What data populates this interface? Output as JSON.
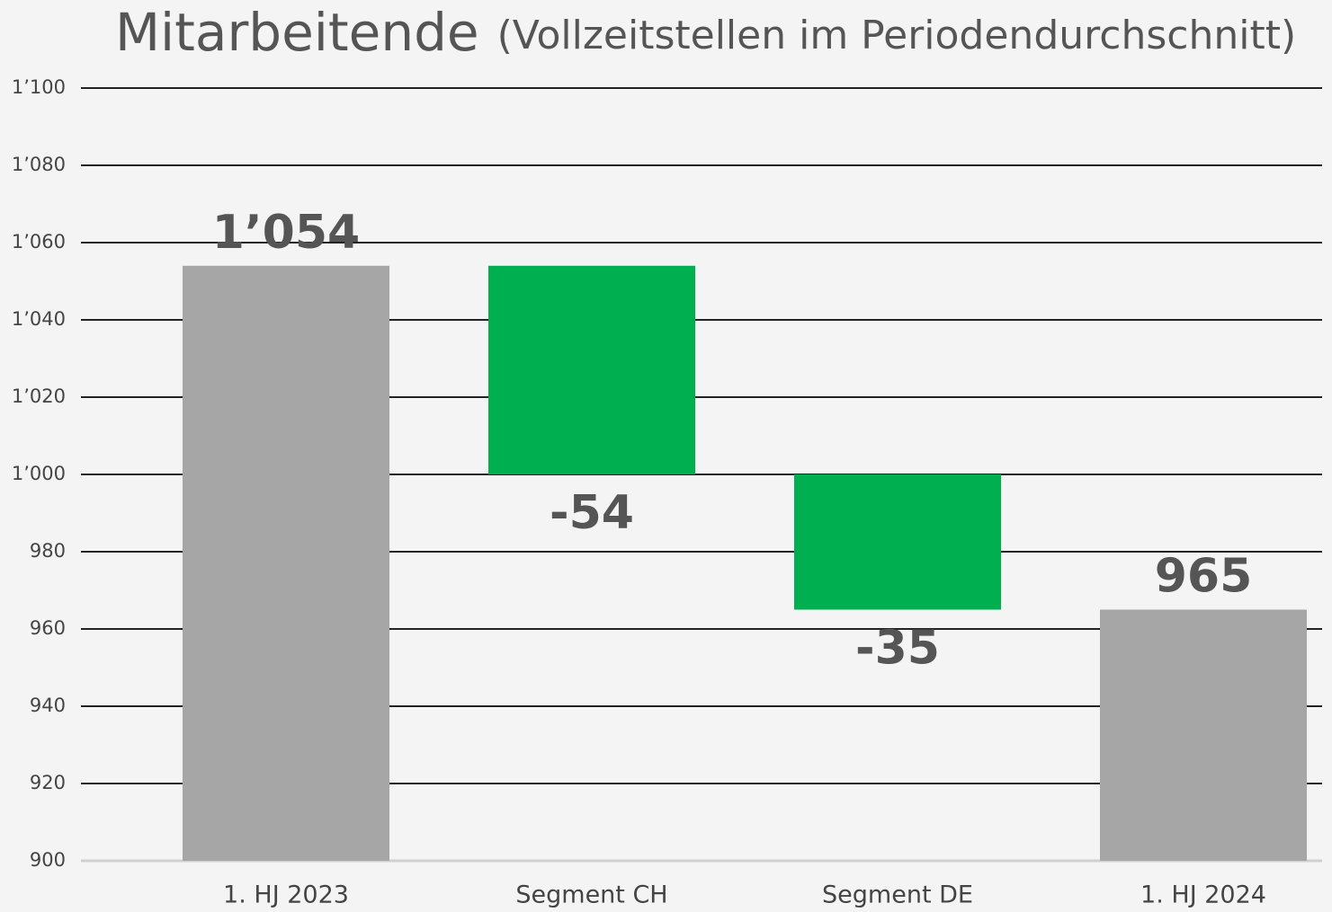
{
  "chart_data": {
    "type": "waterfall",
    "title": "Mitarbeitende",
    "subtitle": "(Vollzeitstellen im Periodendurchschnitt)",
    "categories": [
      "1. HJ 2023",
      "Segment CH",
      "Segment DE",
      "1. HJ 2024"
    ],
    "values": [
      1054,
      -54,
      -35,
      965
    ],
    "value_labels": [
      "1’054",
      "-54",
      "-35",
      "965"
    ],
    "measure": [
      "absolute",
      "relative",
      "relative",
      "total"
    ],
    "colors": [
      "#a6a6a6",
      "#00b050",
      "#00b050",
      "#a6a6a6"
    ],
    "ylim": [
      900,
      1100
    ],
    "yticks": [
      900,
      920,
      940,
      960,
      980,
      {
        "value": 1000,
        "label": "1’000"
      },
      {
        "value": 1020,
        "label": "1’020"
      },
      {
        "value": 1040,
        "label": "1’040"
      },
      {
        "value": 1060,
        "label": "1’060"
      },
      {
        "value": 1080,
        "label": "1’080"
      },
      {
        "value": 1100,
        "label": "1’100"
      }
    ],
    "grid": true
  }
}
